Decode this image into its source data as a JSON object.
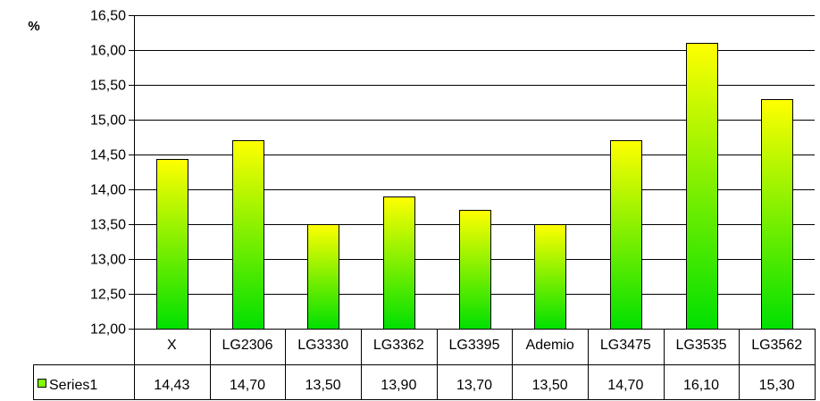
{
  "chart_data": {
    "type": "bar",
    "unit_label": "%",
    "categories": [
      "X",
      "LG2306",
      "LG3330",
      "LG3362",
      "LG3395",
      "Ademio",
      "LG3475",
      "LG3535",
      "LG3562"
    ],
    "series": [
      {
        "name": "Series1",
        "values": [
          14.43,
          14.7,
          13.5,
          13.9,
          13.7,
          13.5,
          14.7,
          16.1,
          15.3
        ],
        "value_labels": [
          "14,43",
          "14,70",
          "13,50",
          "13,90",
          "13,70",
          "13,50",
          "14,70",
          "16,10",
          "15,30"
        ],
        "gradient_top": "#ffff00",
        "gradient_bottom": "#00e000"
      }
    ],
    "ylim": [
      12.0,
      16.5
    ],
    "y_ticks": [
      12.0,
      12.5,
      13.0,
      13.5,
      14.0,
      14.5,
      15.0,
      15.5,
      16.0,
      16.5
    ],
    "y_tick_labels": [
      "12,00",
      "12,50",
      "13,00",
      "13,50",
      "14,00",
      "14,50",
      "15,00",
      "15,50",
      "16,00",
      "16,50"
    ],
    "grid": true,
    "legend": "data-table",
    "colors": {
      "bar_outline": "#000000",
      "gridline": "#000000",
      "legend_key": "#80ff00"
    }
  }
}
